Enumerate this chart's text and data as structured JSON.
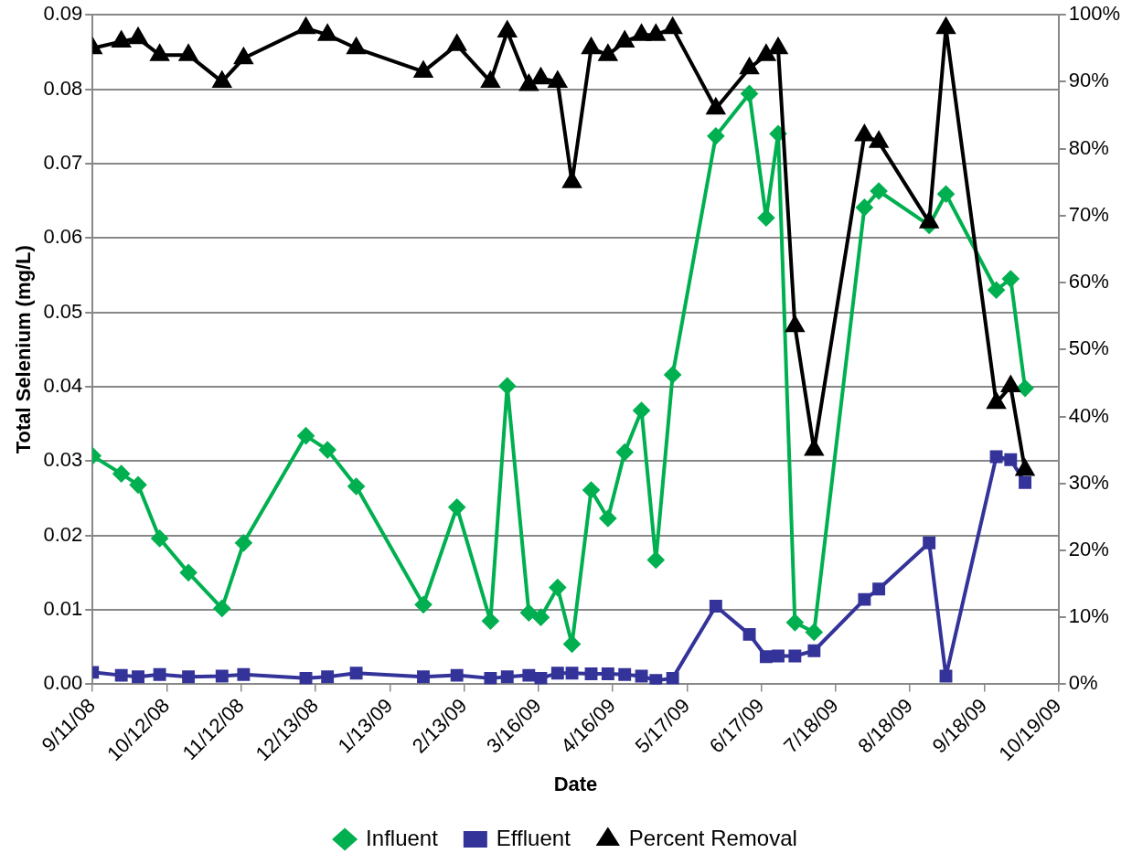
{
  "chart_data": {
    "type": "line",
    "xlabel": "Date",
    "ylabel": "Total Selenium (mg/L)",
    "x": [
      "2008-09-11",
      "2008-09-23",
      "2008-09-30",
      "2008-10-09",
      "2008-10-21",
      "2008-11-04",
      "2008-11-13",
      "2008-12-09",
      "2008-12-18",
      "2008-12-30",
      "2009-01-27",
      "2009-02-10",
      "2009-02-24",
      "2009-03-03",
      "2009-03-12",
      "2009-03-17",
      "2009-03-24",
      "2009-03-30",
      "2009-04-07",
      "2009-04-14",
      "2009-04-21",
      "2009-04-28",
      "2009-05-04",
      "2009-05-11",
      "2009-05-29",
      "2009-06-12",
      "2009-06-19",
      "2009-06-24",
      "2009-07-01",
      "2009-07-09",
      "2009-07-30",
      "2009-08-05",
      "2009-08-26",
      "2009-09-02",
      "2009-09-23",
      "2009-09-29",
      "2009-10-05"
    ],
    "series": [
      {
        "name": "Influent",
        "color": "#00b050",
        "marker": "diamond",
        "values": [
          0.0307,
          0.0283,
          0.0268,
          0.0196,
          0.015,
          0.0102,
          0.019,
          0.0334,
          0.0315,
          0.0266,
          0.0107,
          0.0238,
          0.0085,
          0.0401,
          0.0096,
          0.009,
          0.013,
          0.0054,
          0.0261,
          0.0223,
          0.0312,
          0.0368,
          0.0167,
          0.0416,
          0.0737,
          0.0794,
          0.0627,
          0.074,
          0.0083,
          0.007,
          0.0641,
          0.0663,
          0.0617,
          0.0659,
          0.053,
          0.0545,
          0.0398
        ]
      },
      {
        "name": "Effluent",
        "color": "#333399",
        "marker": "square",
        "values": [
          0.0016,
          0.0012,
          0.001,
          0.0013,
          0.001,
          0.0011,
          0.0013,
          0.0008,
          0.001,
          0.0015,
          0.001,
          0.0012,
          0.0008,
          0.001,
          0.0012,
          0.0008,
          0.0015,
          0.0015,
          0.0014,
          0.0014,
          0.0013,
          0.0011,
          0.0005,
          0.0008,
          0.0105,
          0.0067,
          0.0037,
          0.0038,
          0.0038,
          0.0045,
          0.0114,
          0.0128,
          0.019,
          0.0011,
          0.0306,
          0.0302,
          0.0271
        ]
      },
      {
        "name": "Percent Removal",
        "color": "#000000",
        "marker": "triangle",
        "axis": "y2",
        "values": [
          95,
          96,
          96.5,
          94,
          94,
          90,
          93.5,
          98,
          97,
          95,
          91.5,
          95.5,
          90,
          97.5,
          89.5,
          90.5,
          90,
          75,
          95,
          94,
          96,
          97,
          97,
          98,
          86,
          92,
          94,
          95,
          53.5,
          35,
          82,
          81,
          69,
          98,
          42,
          44.5,
          32
        ]
      }
    ],
    "xlim": [
      "2008-09-11",
      "2009-10-19"
    ],
    "xticks": [
      {
        "value": "2008-09-11",
        "label": "9/11/08"
      },
      {
        "value": "2008-10-12",
        "label": "10/12/08"
      },
      {
        "value": "2008-11-12",
        "label": "11/12/08"
      },
      {
        "value": "2008-12-13",
        "label": "12/13/08"
      },
      {
        "value": "2009-01-13",
        "label": "1/13/09"
      },
      {
        "value": "2009-02-13",
        "label": "2/13/09"
      },
      {
        "value": "2009-03-16",
        "label": "3/16/09"
      },
      {
        "value": "2009-04-16",
        "label": "4/16/09"
      },
      {
        "value": "2009-05-17",
        "label": "5/17/09"
      },
      {
        "value": "2009-06-17",
        "label": "6/17/09"
      },
      {
        "value": "2009-07-18",
        "label": "7/18/09"
      },
      {
        "value": "2009-08-18",
        "label": "8/18/09"
      },
      {
        "value": "2009-09-18",
        "label": "9/18/09"
      },
      {
        "value": "2009-10-19",
        "label": "10/19/09"
      }
    ],
    "ylim": [
      0,
      0.09
    ],
    "yticks": [
      {
        "value": 0,
        "label": "0.00"
      },
      0.01,
      0.02,
      0.03,
      0.04,
      0.05,
      0.06,
      0.07,
      0.08,
      0.09
    ],
    "y2lim": [
      0,
      100
    ],
    "y2ticks": [
      {
        "value": 0,
        "label": "0%"
      },
      {
        "value": 10,
        "label": "10%"
      },
      {
        "value": 20,
        "label": "20%"
      },
      {
        "value": 30,
        "label": "30%"
      },
      {
        "value": 40,
        "label": "40%"
      },
      {
        "value": 50,
        "label": "50%"
      },
      {
        "value": 60,
        "label": "60%"
      },
      {
        "value": 70,
        "label": "70%"
      },
      {
        "value": 80,
        "label": "80%"
      },
      {
        "value": 90,
        "label": "90%"
      },
      {
        "value": 100,
        "label": "100%"
      }
    ],
    "grid": "y",
    "legend": "bottom",
    "line_style": "solid"
  }
}
